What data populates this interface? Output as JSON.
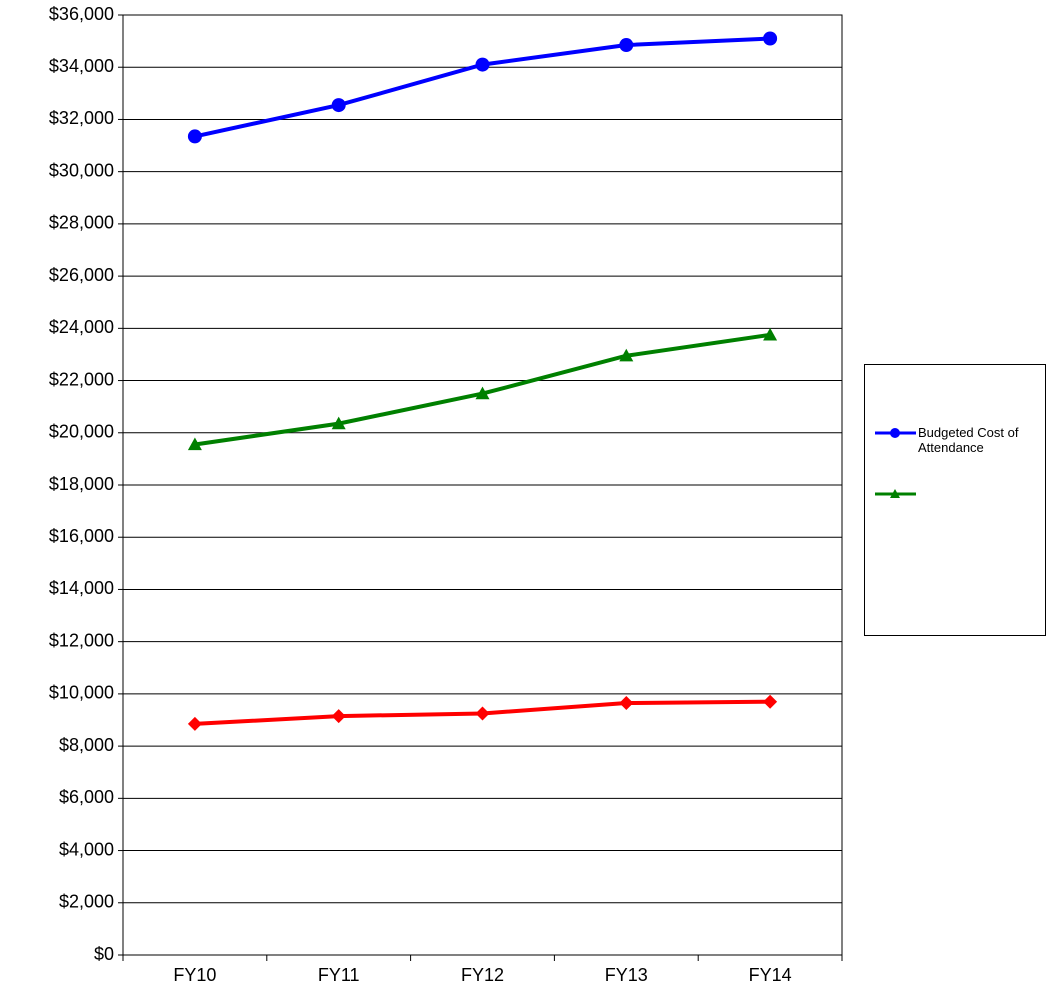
{
  "chart_data": {
    "type": "line",
    "categories": [
      "FY10",
      "FY11",
      "FY12",
      "FY13",
      "FY14"
    ],
    "series": [
      {
        "name": "Budgeted Cost of Attendance",
        "color": "#0000ff",
        "marker": "circle",
        "in_legend": true,
        "values": [
          31350,
          32550,
          34100,
          34850,
          35100
        ]
      },
      {
        "color": "#008000",
        "marker": "triangle",
        "in_legend": true,
        "values": [
          19550,
          20350,
          21500,
          22950,
          23750
        ]
      },
      {
        "color": "#ff0000",
        "marker": "diamond",
        "in_legend": false,
        "values": [
          8850,
          9150,
          9250,
          9650,
          9700
        ]
      }
    ],
    "ylim": [
      0,
      36000
    ],
    "yticks": [
      {
        "value": 0,
        "label": "$0"
      },
      {
        "value": 2000,
        "label": "$2,000"
      },
      {
        "value": 4000,
        "label": "$4,000"
      },
      {
        "value": 6000,
        "label": "$6,000"
      },
      {
        "value": 8000,
        "label": "$8,000"
      },
      {
        "value": 10000,
        "label": "$10,000"
      },
      {
        "value": 12000,
        "label": "$12,000"
      },
      {
        "value": 14000,
        "label": "$14,000"
      },
      {
        "value": 16000,
        "label": "$16,000"
      },
      {
        "value": 18000,
        "label": "$18,000"
      },
      {
        "value": 20000,
        "label": "$20,000"
      },
      {
        "value": 22000,
        "label": "$22,000"
      },
      {
        "value": 24000,
        "label": "$24,000"
      },
      {
        "value": 26000,
        "label": "$26,000"
      },
      {
        "value": 28000,
        "label": "$28,000"
      },
      {
        "value": 30000,
        "label": "$30,000"
      },
      {
        "value": 32000,
        "label": "$32,000"
      },
      {
        "value": 34000,
        "label": "$34,000"
      },
      {
        "value": 36000,
        "label": "$36,000"
      }
    ],
    "grid": true,
    "legend": "right"
  }
}
